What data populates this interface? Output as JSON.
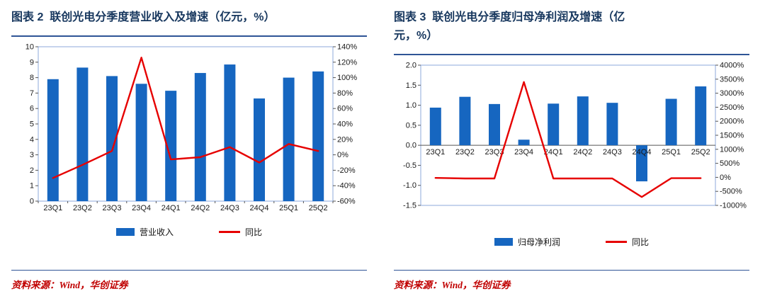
{
  "colors": {
    "bar_blue": "#1666c0",
    "line_red": "#e60000",
    "title_navy": "#17375e",
    "rule_blue": "#2f5496",
    "source_red": "#c00000",
    "plot_border": "#8ea9db",
    "axis_text": "#1a1a1a"
  },
  "chart_data": [
    {
      "type": "combo-bar-line",
      "title": "图表 2  联创光电分季度营业收入及增速（亿元，%）",
      "source": "资料来源：Wind，华创证券",
      "categories": [
        "23Q1",
        "23Q2",
        "23Q3",
        "23Q4",
        "24Q1",
        "24Q2",
        "24Q3",
        "24Q4",
        "25Q1",
        "25Q2"
      ],
      "series": [
        {
          "name": "营业收入",
          "type": "bar",
          "axis": "left",
          "color": "#1666c0",
          "values": [
            7.9,
            8.65,
            8.1,
            7.6,
            7.15,
            8.3,
            8.85,
            6.65,
            8.0,
            8.4
          ]
        },
        {
          "name": "同比",
          "type": "line",
          "axis": "right",
          "color": "#e60000",
          "values": [
            -30,
            -13,
            5,
            126,
            -6,
            -3,
            10,
            -10,
            14,
            5
          ]
        }
      ],
      "left_axis": {
        "min": 0,
        "max": 10,
        "step": 1,
        "decimals": 0
      },
      "right_axis": {
        "min": -60,
        "max": 140,
        "step": 20,
        "suffix": "%"
      },
      "category_labels_at_zero": false,
      "grid": false,
      "legend_position": "bottom"
    },
    {
      "type": "combo-bar-line",
      "title": "图表 3  联创光电分季度归母净利润及增速（亿\n元，%）",
      "source": "资料来源：Wind，华创证券",
      "categories": [
        "23Q1",
        "23Q2",
        "23Q3",
        "23Q4",
        "24Q1",
        "24Q2",
        "24Q3",
        "24Q4",
        "25Q1",
        "25Q2"
      ],
      "series": [
        {
          "name": "归母净利润",
          "type": "bar",
          "axis": "left",
          "color": "#1666c0",
          "values": [
            0.94,
            1.21,
            1.03,
            0.14,
            1.04,
            1.22,
            1.06,
            -0.9,
            1.16,
            1.47
          ]
        },
        {
          "name": "同比",
          "type": "line",
          "axis": "right",
          "color": "#e60000",
          "values": [
            -20,
            -40,
            -40,
            3400,
            -40,
            -40,
            -40,
            -700,
            -30,
            -30
          ]
        }
      ],
      "left_axis": {
        "min": -1.5,
        "max": 2.0,
        "step": 0.5,
        "decimals": 1
      },
      "right_axis": {
        "min": -1000,
        "max": 4000,
        "step": 500,
        "suffix": "%"
      },
      "category_labels_at_zero": true,
      "grid": false,
      "legend_position": "bottom"
    }
  ]
}
